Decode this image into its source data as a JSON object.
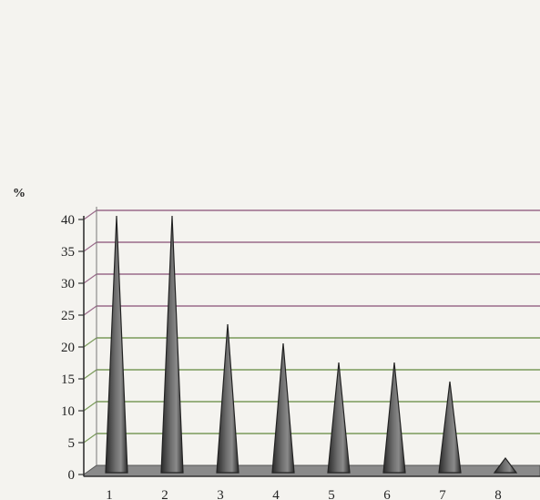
{
  "chart_data": {
    "type": "bar",
    "bar_shape": "cone",
    "title": "",
    "xlabel": "",
    "ylabel": "%",
    "categories": [
      "1",
      "2",
      "3",
      "4",
      "5",
      "6",
      "7",
      "8"
    ],
    "values": [
      40,
      40,
      23,
      20,
      17,
      17,
      14,
      2
    ],
    "ylim": [
      0,
      40
    ],
    "yticks": [
      "0",
      "5",
      "10",
      "15",
      "20",
      "25",
      "30",
      "35",
      "40"
    ],
    "grid": true,
    "legend": "none",
    "colors": {
      "bar": "#6f6f6f",
      "bar_dark": "#2a2a2a",
      "grid_top": "#9a6a8a",
      "grid_bottom": "#7a9a5a",
      "axis": "#333333",
      "floor": "#8a8a8a"
    }
  }
}
